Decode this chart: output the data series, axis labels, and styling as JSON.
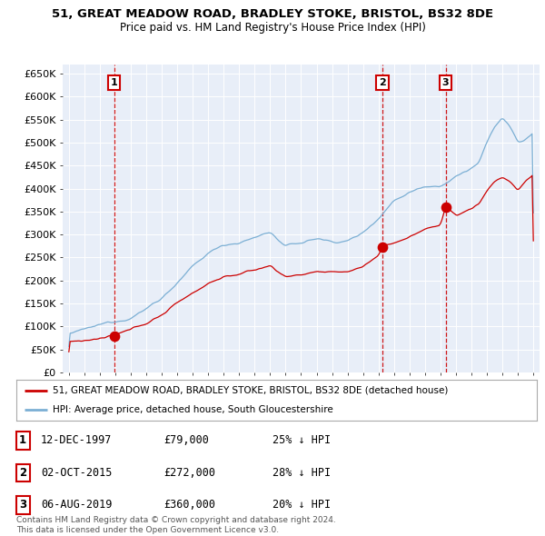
{
  "title": "51, GREAT MEADOW ROAD, BRADLEY STOKE, BRISTOL, BS32 8DE",
  "subtitle": "Price paid vs. HM Land Registry's House Price Index (HPI)",
  "ylabel_ticks": [
    "£0",
    "£50K",
    "£100K",
    "£150K",
    "£200K",
    "£250K",
    "£300K",
    "£350K",
    "£400K",
    "£450K",
    "£500K",
    "£550K",
    "£600K",
    "£650K"
  ],
  "ytick_values": [
    0,
    50000,
    100000,
    150000,
    200000,
    250000,
    300000,
    350000,
    400000,
    450000,
    500000,
    550000,
    600000,
    650000
  ],
  "ylim": [
    0,
    670000
  ],
  "hpi_color": "#7bafd4",
  "price_color": "#cc0000",
  "dashed_color": "#cc0000",
  "purchase_points": [
    {
      "year_idx": 35,
      "price": 79000,
      "label": "1",
      "year_label": 1997.95
    },
    {
      "year_idx": 243,
      "price": 272000,
      "label": "2",
      "year_label": 2015.75
    },
    {
      "year_idx": 292,
      "price": 360000,
      "label": "3",
      "year_label": 2019.59
    }
  ],
  "legend_line1": "51, GREAT MEADOW ROAD, BRADLEY STOKE, BRISTOL, BS32 8DE (detached house)",
  "legend_line2": "HPI: Average price, detached house, South Gloucestershire",
  "table_entries": [
    {
      "num": "1",
      "date": "12-DEC-1997",
      "price": "£79,000",
      "pct": "25% ↓ HPI"
    },
    {
      "num": "2",
      "date": "02-OCT-2015",
      "price": "£272,000",
      "pct": "28% ↓ HPI"
    },
    {
      "num": "3",
      "date": "06-AUG-2019",
      "price": "£360,000",
      "pct": "20% ↓ HPI"
    }
  ],
  "footer1": "Contains HM Land Registry data © Crown copyright and database right 2024.",
  "footer2": "This data is licensed under the Open Government Licence v3.0.",
  "background_color": "#ffffff",
  "plot_bg_color": "#e8eef8"
}
